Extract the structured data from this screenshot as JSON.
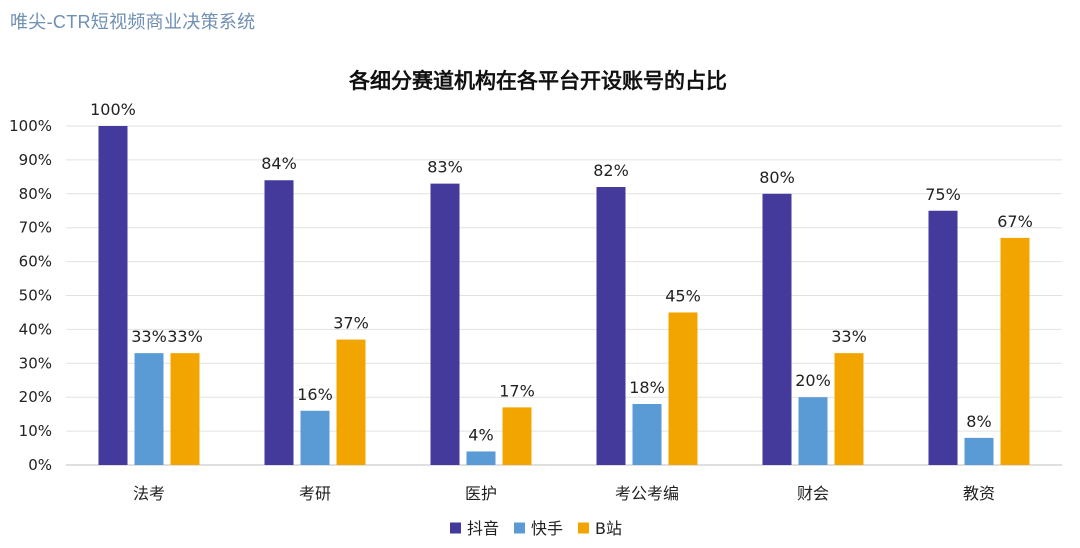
{
  "header": {
    "brand": "唯尖-CTR短视频商业决策系统"
  },
  "chart_data": {
    "type": "bar",
    "title": "各细分赛道机构在各平台开设账号的占比",
    "xlabel": "",
    "ylabel": "",
    "categories": [
      "法考",
      "考研",
      "医护",
      "考公考编",
      "财会",
      "教资"
    ],
    "series": [
      {
        "name": "抖音",
        "color": "#433a9c",
        "values": [
          100,
          84,
          83,
          82,
          80,
          75
        ]
      },
      {
        "name": "快手",
        "color": "#5b9bd5",
        "values": [
          33,
          16,
          4,
          18,
          20,
          8
        ]
      },
      {
        "name": "B站",
        "color": "#f2a500",
        "values": [
          33,
          37,
          17,
          45,
          33,
          67
        ]
      }
    ],
    "ylim": [
      0,
      100
    ],
    "yticks": [
      0,
      10,
      20,
      30,
      40,
      50,
      60,
      70,
      80,
      90,
      100
    ],
    "value_suffix": "%",
    "grid": true,
    "legend": "bottom-center"
  }
}
